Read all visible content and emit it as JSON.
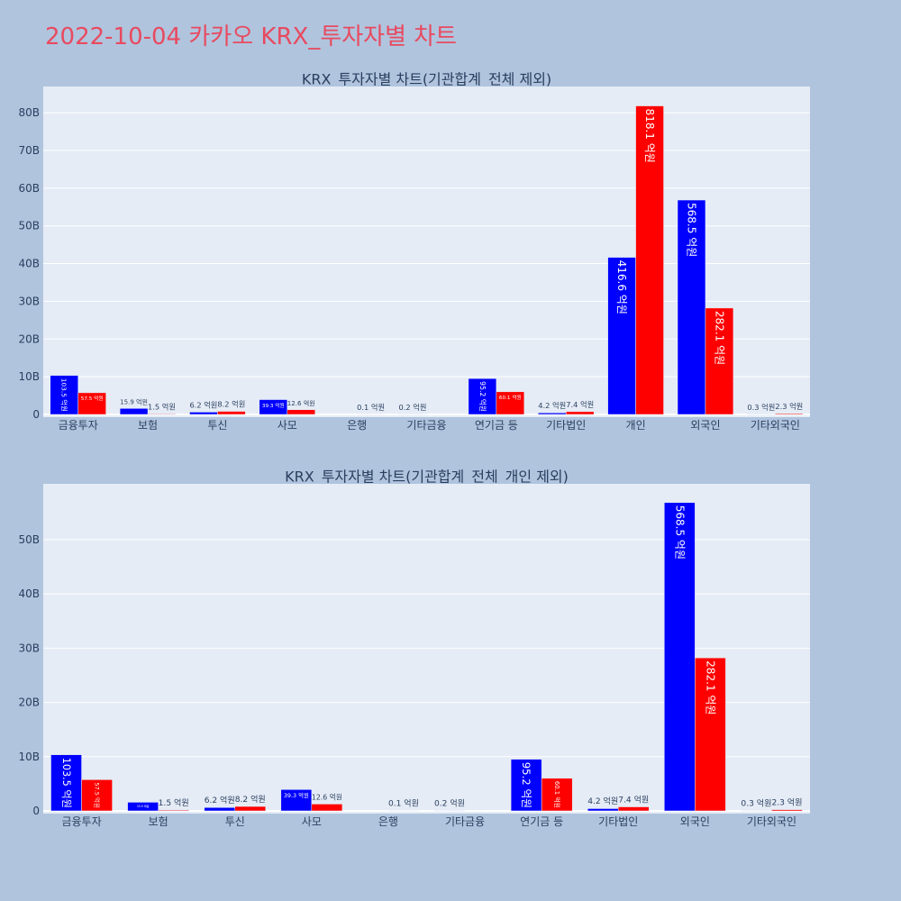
{
  "page": {
    "title": "2022-10-04 카카오 KRX_투자자별 차트",
    "background": "#b0c4de",
    "plot_background": "#e5ecf6",
    "title_color": "#e84a5f",
    "text_color": "#2a3f5f",
    "inside_label_color": "#ffffff"
  },
  "chart_data": [
    {
      "type": "bar",
      "barmode": "group",
      "title": "KRX_투자자별 차트(기관합계_전체 제외)",
      "categories": [
        "금융투자",
        "보험",
        "투신",
        "사모",
        "은행",
        "기타금융",
        "연기금 등",
        "기타법인",
        "개인",
        "외국인",
        "기타외국인"
      ],
      "series": [
        {
          "color": "#0000ff",
          "values": [
            10.35,
            1.59,
            0.62,
            3.93,
            null,
            0.02,
            9.52,
            0.42,
            41.66,
            56.85,
            0.03
          ],
          "labels": [
            "103.5 억원",
            "15.9 억원",
            "6.2 억원",
            "39.3 억원",
            null,
            "0.2 억원",
            "95.2 억원",
            "4.2 억원",
            "416.6 억원",
            "568.5 억원",
            "0.3 억원"
          ]
        },
        {
          "color": "#ff0000",
          "values": [
            5.75,
            0.15,
            0.82,
            1.26,
            0.01,
            null,
            6.01,
            0.74,
            81.81,
            28.21,
            0.23
          ],
          "labels": [
            "57.5 억원",
            "1.5 억원",
            "8.2 억원",
            "12.6 억원",
            "0.1 억원",
            null,
            "60.1 억원",
            "7.4 억원",
            "818.1 억원",
            "282.1 억원",
            "2.3 억원"
          ]
        }
      ],
      "ylim": [
        -0.72,
        86.96
      ],
      "yticks": [
        0,
        10,
        20,
        30,
        40,
        50,
        60,
        70,
        80
      ],
      "ytick_labels": [
        "0",
        "10B",
        "20B",
        "30B",
        "40B",
        "50B",
        "60B",
        "70B",
        "80B"
      ],
      "grid": true,
      "legend": "none"
    },
    {
      "type": "bar",
      "barmode": "group",
      "title": "KRX_투자자별 차트(기관합계_전체_개인 제외)",
      "categories": [
        "금융투자",
        "보험",
        "투신",
        "사모",
        "은행",
        "기타금융",
        "연기금 등",
        "기타법인",
        "외국인",
        "기타외국인"
      ],
      "series": [
        {
          "color": "#0000ff",
          "values": [
            10.35,
            1.59,
            0.62,
            3.93,
            null,
            0.02,
            9.52,
            0.42,
            56.85,
            0.03
          ],
          "labels": [
            "103.5 억원",
            "15.9 억원",
            "6.2 억원",
            "39.3 억원",
            null,
            "0.2 억원",
            "95.2 억원",
            "4.2 억원",
            "568.5 억원",
            "0.3 억원"
          ]
        },
        {
          "color": "#ff0000",
          "values": [
            5.75,
            0.15,
            0.82,
            1.26,
            0.01,
            null,
            6.01,
            0.74,
            28.21,
            0.23
          ],
          "labels": [
            "57.5 억원",
            "1.5 억원",
            "8.2 억원",
            "12.6 억원",
            "0.1 억원",
            null,
            "60.1 억원",
            "7.4 억원",
            "282.1 억원",
            "2.3 억원"
          ]
        }
      ],
      "ylim": [
        -0.5,
        60.3
      ],
      "yticks": [
        0,
        10,
        20,
        30,
        40,
        50
      ],
      "ytick_labels": [
        "0",
        "10B",
        "20B",
        "30B",
        "40B",
        "50B"
      ],
      "grid": true,
      "legend": "none"
    }
  ]
}
